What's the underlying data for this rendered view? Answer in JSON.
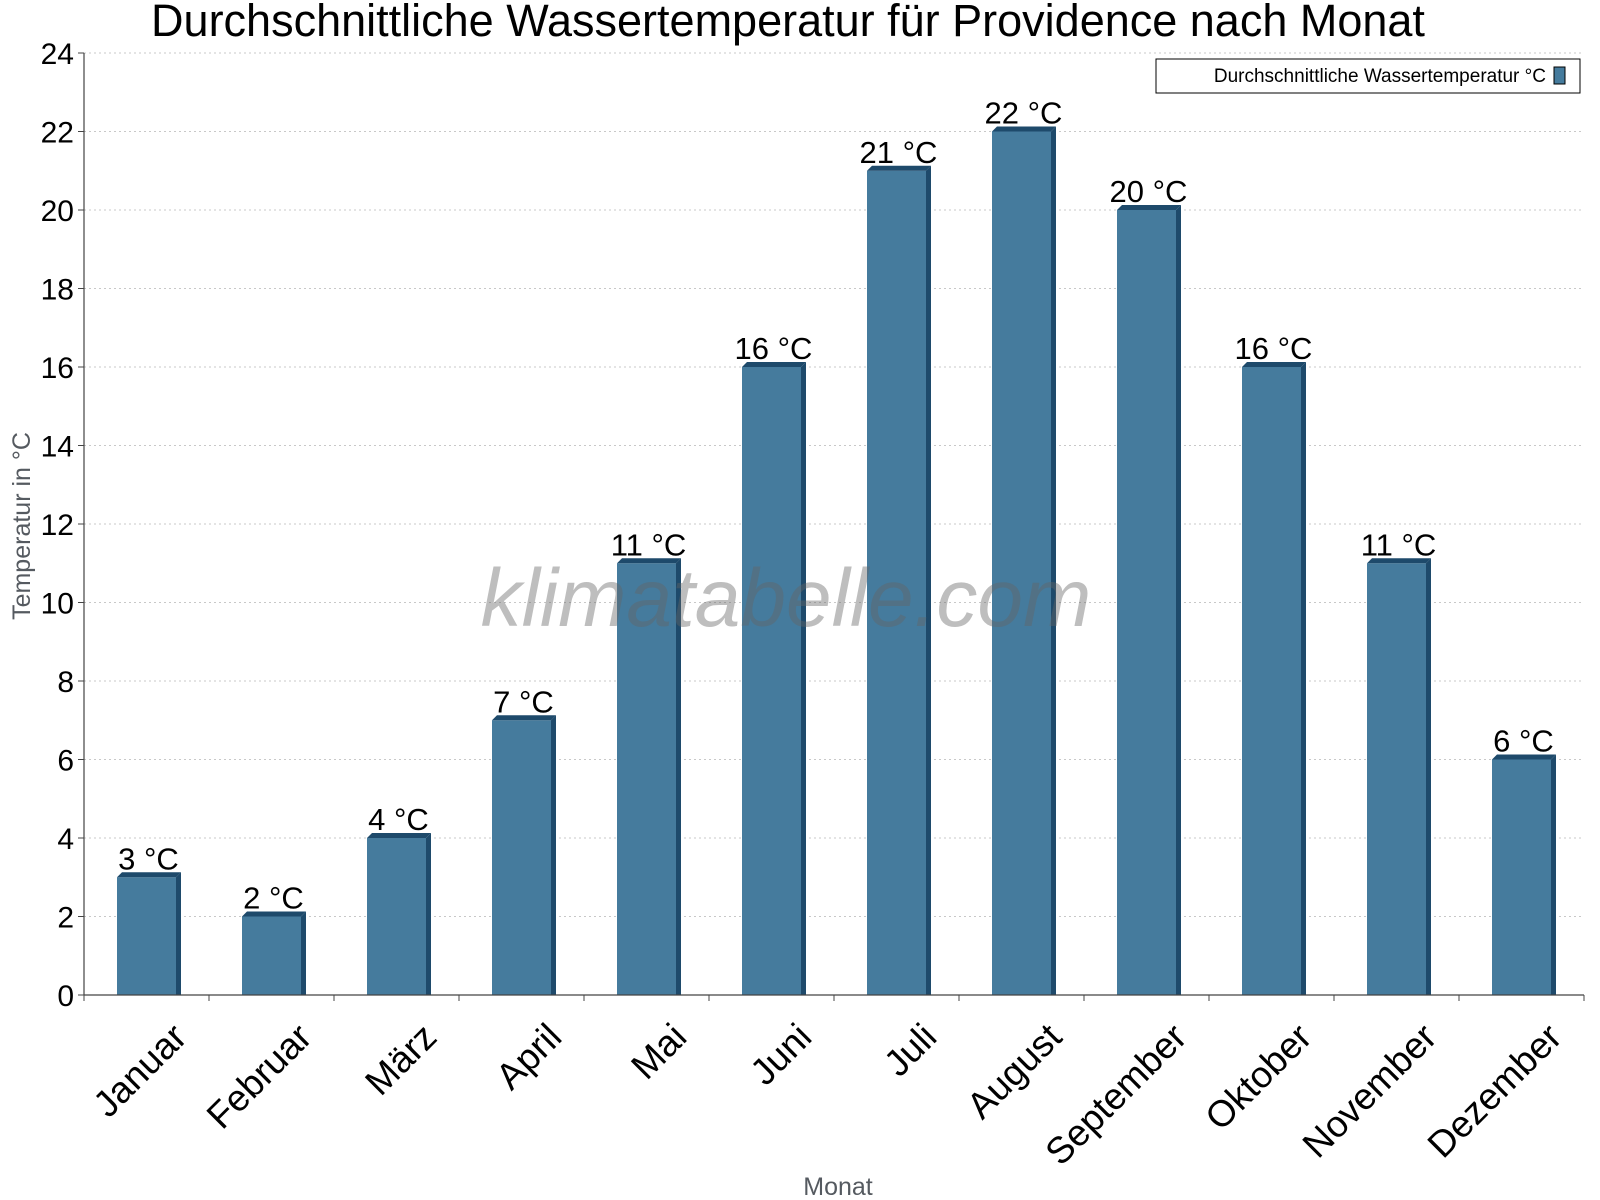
{
  "colors": {
    "bar": "#457b9d",
    "bar_side": "#1e4a6b",
    "grid": "#c8c8c8",
    "axis": "#444444"
  },
  "watermark": "klimatabelle.com",
  "chart_data": {
    "type": "bar",
    "title": "Durchschnittliche Wassertemperatur für Providence nach Monat",
    "xlabel": "Monat",
    "ylabel": "Temperatur in °C",
    "ylim": [
      0,
      24
    ],
    "yticks": [
      0,
      2,
      4,
      6,
      8,
      10,
      12,
      14,
      16,
      18,
      20,
      22,
      24
    ],
    "grid": true,
    "legend_position": "top-right",
    "categories": [
      "Januar",
      "Februar",
      "März",
      "April",
      "Mai",
      "Juni",
      "Juli",
      "August",
      "September",
      "Oktober",
      "November",
      "Dezember"
    ],
    "series": [
      {
        "name": "Durchschnittliche Wassertemperatur °C",
        "values": [
          3,
          2,
          4,
          7,
          11,
          16,
          21,
          22,
          20,
          16,
          11,
          6
        ],
        "labels": [
          "3 °C",
          "2 °C",
          "4 °C",
          "7 °C",
          "11 °C",
          "16 °C",
          "21 °C",
          "22 °C",
          "20 °C",
          "16 °C",
          "11 °C",
          "6 °C"
        ]
      }
    ]
  }
}
